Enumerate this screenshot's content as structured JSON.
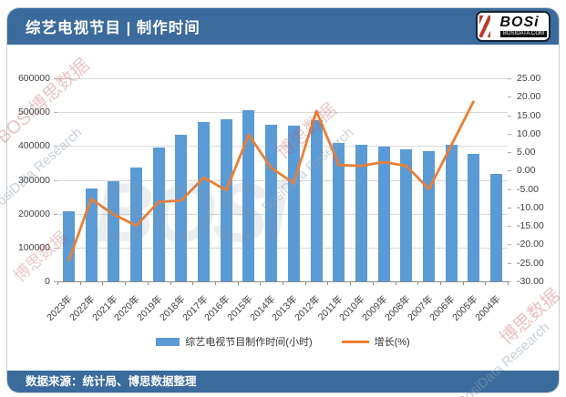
{
  "header": {
    "title": "综艺电视节目 | 制作时间",
    "logo": {
      "text": "BOSi",
      "sub": "BOSIDATA.COM"
    }
  },
  "legend": {
    "items": [
      {
        "label": "综艺电视节目制作时间(小时)",
        "swatch": "bar"
      },
      {
        "label": "增长(%)",
        "swatch": "line"
      }
    ]
  },
  "footer": {
    "source": "数据来源：统计局、博思数据整理"
  },
  "colors": {
    "bar": "#5B9BD5",
    "line": "#ED7D31",
    "band": "#3A6B9C",
    "grid": "#D9D9D9",
    "axis_text": "#3F3F3F"
  },
  "watermarks": {
    "logo": "BOSi",
    "brand_cn": "博思数据",
    "brand_en": "BosiData Research",
    "brand_mix": "BOSI博思数据"
  },
  "chart_data": {
    "type": "bar+line combo",
    "title": "综艺电视节目 | 制作时间",
    "categories": [
      "2023年",
      "2022年",
      "2021年",
      "2020年",
      "2019年",
      "2018年",
      "2017年",
      "2016年",
      "2015年",
      "2014年",
      "2013年",
      "2012年",
      "2011年",
      "2010年",
      "2009年",
      "2008年",
      "2007年",
      "2006年",
      "2005年",
      "2004年"
    ],
    "series": [
      {
        "name": "综艺电视节目制作时间(小时)",
        "type": "bar",
        "axis": "left",
        "values": [
          207000,
          274000,
          297000,
          337000,
          396000,
          433000,
          471000,
          480000,
          507000,
          462000,
          459000,
          475000,
          409000,
          403000,
          398000,
          389000,
          384000,
          404000,
          378000,
          318000
        ]
      },
      {
        "name": "增长(%)",
        "type": "line",
        "axis": "right",
        "values": [
          -24.5,
          -7.7,
          -11.9,
          -14.9,
          -8.5,
          -8.1,
          -1.9,
          -5.3,
          9.7,
          0.7,
          -3.4,
          16.1,
          1.5,
          1.3,
          2.3,
          1.3,
          -5.0,
          6.9,
          18.9,
          null
        ]
      }
    ],
    "left_axis": {
      "min": 0,
      "max": 600000,
      "step": 100000,
      "tick_labels": [
        "600000",
        "500000",
        "400000",
        "300000",
        "200000",
        "100000",
        "0"
      ]
    },
    "right_axis": {
      "min": -30,
      "max": 25,
      "step": 5,
      "tick_labels": [
        "25.00",
        "20.00",
        "15.00",
        "10.00",
        "5.00",
        "0.00",
        "-5.00",
        "-10.00",
        "-15.00",
        "-20.00",
        "-25.00",
        "-30.00"
      ]
    },
    "grid": "horizontal",
    "legend_position": "bottom"
  }
}
